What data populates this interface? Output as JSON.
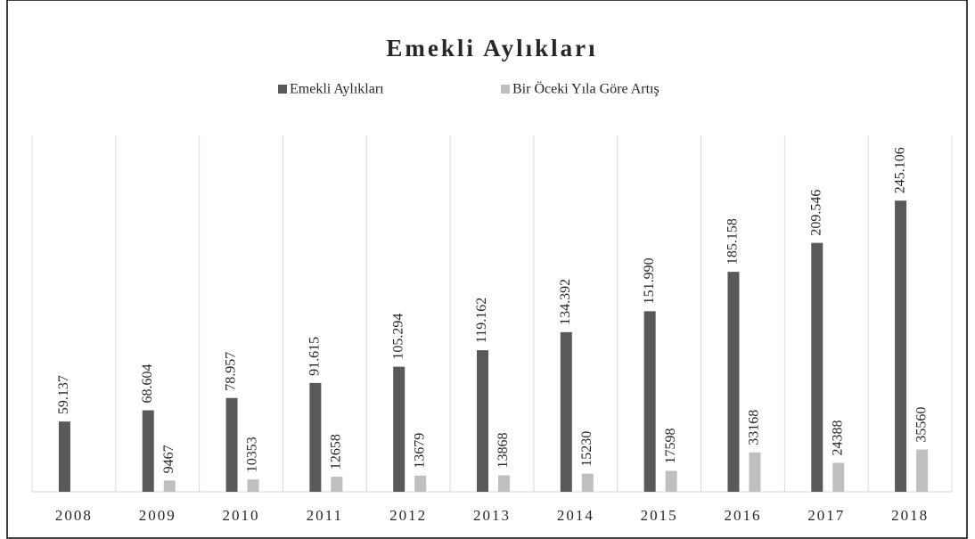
{
  "chart_data": {
    "type": "bar",
    "title": "Emekli Aylıkları",
    "categories": [
      "2008",
      "2009",
      "2010",
      "2011",
      "2012",
      "2013",
      "2014",
      "2015",
      "2016",
      "2017",
      "2018"
    ],
    "series": [
      {
        "name": "Emekli Aylıkları",
        "color": "#595959",
        "values": [
          59137,
          68604,
          78957,
          91615,
          105294,
          119162,
          134392,
          151990,
          185158,
          209546,
          245106
        ],
        "value_labels": [
          "59.137",
          "68.604",
          "78.957",
          "91.615",
          "105.294",
          "119.162",
          "134.392",
          "151.990",
          "185.158",
          "209.546",
          "245.106"
        ]
      },
      {
        "name": "Bir Öceki Yıla Göre Artış",
        "color": "#bfbfbf",
        "values": [
          null,
          9467,
          10353,
          12658,
          13679,
          13868,
          15230,
          17598,
          33168,
          24388,
          35560
        ]
      }
    ],
    "ylim": [
      0,
      300000
    ],
    "legend": "top"
  }
}
